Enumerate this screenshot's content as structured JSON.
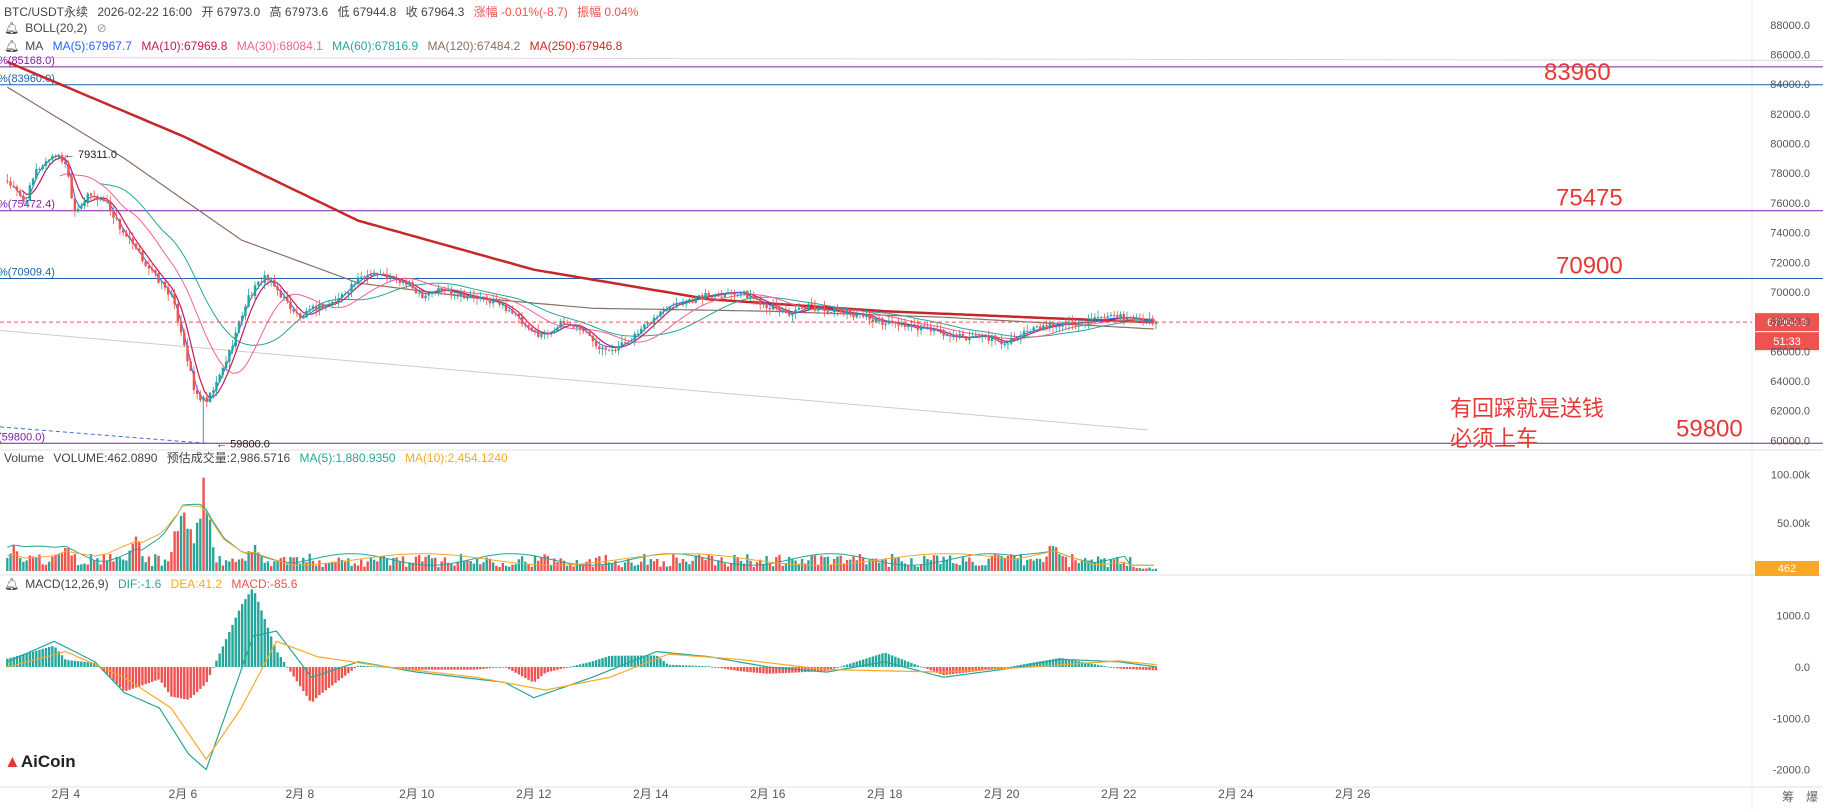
{
  "header": {
    "symbol": "BTC/USDT永续",
    "datetime": "2026-02-22 16:00",
    "open": "开 67973.0",
    "high": "高 67973.6",
    "low": "低 67944.8",
    "close": "收 67964.3",
    "change": "涨幅 -0.01%(-8.7)",
    "amplitude": "振幅 0.04%",
    "boll": "BOLL(20,2)",
    "ma_label": "MA",
    "ma": [
      {
        "text": "MA(5):67967.7",
        "color": "#2962ff"
      },
      {
        "text": "MA(10):67969.8",
        "color": "#c2185b"
      },
      {
        "text": "MA(30):68084.1",
        "color": "#f06292"
      },
      {
        "text": "MA(60):67816.9",
        "color": "#26a69a"
      },
      {
        "text": "MA(120):67484.2",
        "color": "#8d6e63"
      },
      {
        "text": "MA(250):67946.8",
        "color": "#c62828"
      }
    ],
    "volume_label": "Volume",
    "volume": "VOLUME:462.0890",
    "volume_est": "预估成交量:2,986.5716",
    "vol_ma5": "MA(5):1,880.9350",
    "vol_ma10": "MA(10):2,454.1240",
    "macd_label": "MACD(12,26,9)",
    "dif": "DIF:-1.6",
    "dea": "DEA:41.2",
    "macd": "MACD:-85.6"
  },
  "colors": {
    "up": "#26a69a",
    "down": "#ef5350",
    "level_purple": "#7b1fa2",
    "level_blue": "#1e5fa8",
    "annot": "#e53935",
    "ma5": "#2962ff",
    "ma10": "#c2185b",
    "ma30": "#f06292",
    "ma60": "#26a69a",
    "ma120": "#8d6e63",
    "ma250": "#c62828",
    "vol_ma5": "#26a69a",
    "vol_ma10": "#f9a825",
    "dif": "#26a69a",
    "dea": "#f9a825"
  },
  "logo": "AiCoin",
  "corner_controls": [
    "筹",
    "爆"
  ],
  "chart_data": {
    "type": "candlestick",
    "x_ticks": [
      "2月 4",
      "2月 6",
      "2月 8",
      "2月 10",
      "2月 12",
      "2月 14",
      "2月 16",
      "2月 18",
      "2月 20",
      "2月 22",
      "2月 24",
      "2月 26"
    ],
    "price_axis": {
      "ticks": [
        "88000.0",
        "86000.0",
        "84000.0",
        "82000.0",
        "80000.0",
        "78000.0",
        "76000.0",
        "74000.0",
        "72000.0",
        "70000.0",
        "68000.0",
        "66000.0",
        "64000.0",
        "62000.0",
        "60000.0"
      ],
      "range": [
        58000,
        89000
      ]
    },
    "volume_axis": {
      "ticks": [
        "100.00k",
        "50.00k"
      ],
      "range": [
        0,
        110000
      ]
    },
    "macd_axis": {
      "ticks": [
        "1000.0",
        "0.0",
        "-1000.0",
        "-2000.0"
      ],
      "range": [
        -2300,
        1500
      ]
    },
    "current_price": "67964.3",
    "countdown": "51:33",
    "current_volume": "462",
    "levels": [
      {
        "label": "%(85168.0)",
        "value": 85168,
        "color": "#7b1fa2"
      },
      {
        "label": "%(83960.0)",
        "value": 83960,
        "color": "#1e5fa8"
      },
      {
        "label": "%(75472.4)",
        "value": 75472.4,
        "color": "#7b1fa2"
      },
      {
        "label": "%(70909.4)",
        "value": 70909.4,
        "color": "#1e5fa8"
      },
      {
        "label": "(59800.0)",
        "value": 59800,
        "color": "#7b1fa2"
      }
    ],
    "annotations_right": [
      {
        "text": "83960",
        "value": 83960
      },
      {
        "text": "75475",
        "value": 75475
      },
      {
        "text": "70900",
        "value": 70900
      },
      {
        "text": "59800",
        "value": 59800
      }
    ],
    "note_lines": [
      "有回踩就是送钱",
      "必须上车"
    ],
    "marks": [
      {
        "text": "79311.0",
        "value": 79311,
        "date": 3.9
      },
      {
        "text": "59800.0",
        "value": 59800,
        "date": 6.5
      }
    ],
    "price_path": [
      [
        3.0,
        77500
      ],
      [
        3.3,
        76000
      ],
      [
        3.5,
        78200
      ],
      [
        3.8,
        79311
      ],
      [
        4.0,
        78700
      ],
      [
        4.15,
        75500
      ],
      [
        4.4,
        76500
      ],
      [
        4.7,
        76100
      ],
      [
        4.9,
        74500
      ],
      [
        5.2,
        72800
      ],
      [
        5.5,
        71200
      ],
      [
        5.8,
        69800
      ],
      [
        6.0,
        67000
      ],
      [
        6.2,
        63200
      ],
      [
        6.4,
        62500
      ],
      [
        6.6,
        64000
      ],
      [
        6.8,
        66000
      ],
      [
        7.1,
        69500
      ],
      [
        7.4,
        71100
      ],
      [
        7.7,
        69700
      ],
      [
        8.0,
        68200
      ],
      [
        8.3,
        69000
      ],
      [
        8.6,
        69300
      ],
      [
        8.9,
        70500
      ],
      [
        9.2,
        71300
      ],
      [
        9.5,
        71000
      ],
      [
        9.8,
        70600
      ],
      [
        10.1,
        69800
      ],
      [
        10.4,
        70200
      ],
      [
        10.7,
        69900
      ],
      [
        11.0,
        69600
      ],
      [
        11.3,
        69400
      ],
      [
        11.6,
        68800
      ],
      [
        11.9,
        67400
      ],
      [
        12.2,
        67100
      ],
      [
        12.5,
        67900
      ],
      [
        12.8,
        67600
      ],
      [
        13.1,
        66400
      ],
      [
        13.4,
        66200
      ],
      [
        13.7,
        66900
      ],
      [
        14.0,
        68000
      ],
      [
        14.3,
        69100
      ],
      [
        14.6,
        69400
      ],
      [
        14.9,
        69700
      ],
      [
        15.2,
        69900
      ],
      [
        15.5,
        70000
      ],
      [
        15.8,
        69500
      ],
      [
        16.1,
        68900
      ],
      [
        16.4,
        68500
      ],
      [
        16.7,
        69000
      ],
      [
        17.0,
        68800
      ],
      [
        17.3,
        68600
      ],
      [
        17.6,
        68500
      ],
      [
        17.9,
        68000
      ],
      [
        18.2,
        67900
      ],
      [
        18.5,
        67600
      ],
      [
        18.8,
        67500
      ],
      [
        19.1,
        67000
      ],
      [
        19.4,
        66900
      ],
      [
        19.7,
        67100
      ],
      [
        20.0,
        66500
      ],
      [
        20.3,
        67100
      ],
      [
        20.6,
        67500
      ],
      [
        20.9,
        67800
      ],
      [
        21.2,
        67900
      ],
      [
        21.5,
        68000
      ],
      [
        21.8,
        68200
      ],
      [
        22.1,
        68300
      ],
      [
        22.4,
        68100
      ],
      [
        22.67,
        67964.3
      ]
    ],
    "ma250_path": [
      [
        3.0,
        85500
      ],
      [
        6.0,
        80500
      ],
      [
        9.0,
        74800
      ],
      [
        12.0,
        71500
      ],
      [
        15.0,
        69500
      ],
      [
        18.0,
        68700
      ],
      [
        21.0,
        68200
      ],
      [
        22.67,
        67946.8
      ]
    ],
    "ma120_path": [
      [
        3.0,
        83800
      ],
      [
        5.0,
        79000
      ],
      [
        7.0,
        73500
      ],
      [
        9.0,
        70600
      ],
      [
        11.0,
        69600
      ],
      [
        13.0,
        68900
      ],
      [
        16.0,
        68700
      ],
      [
        19.0,
        68300
      ],
      [
        22.67,
        67484.2
      ]
    ],
    "volume_peaks": [
      [
        6.0,
        95000
      ],
      [
        6.35,
        100000
      ],
      [
        5.2,
        40000
      ],
      [
        7.2,
        32000
      ],
      [
        20.9,
        40000
      ],
      [
        3.1,
        30000
      ],
      [
        4.0,
        35000
      ]
    ],
    "macd_dif_path": [
      [
        3.0,
        100
      ],
      [
        3.8,
        500
      ],
      [
        4.5,
        100
      ],
      [
        5.0,
        -500
      ],
      [
        5.6,
        -800
      ],
      [
        6.1,
        -1700
      ],
      [
        6.4,
        -2000
      ],
      [
        6.8,
        -700
      ],
      [
        7.2,
        600
      ],
      [
        7.6,
        700
      ],
      [
        8.2,
        -200
      ],
      [
        9.0,
        100
      ],
      [
        10.0,
        -100
      ],
      [
        11.5,
        -300
      ],
      [
        12.0,
        -600
      ],
      [
        13.0,
        -200
      ],
      [
        14.1,
        300
      ],
      [
        15.0,
        200
      ],
      [
        16.0,
        0
      ],
      [
        17.0,
        -100
      ],
      [
        18.0,
        100
      ],
      [
        19.0,
        -200
      ],
      [
        20.0,
        -50
      ],
      [
        21.0,
        150
      ],
      [
        22.0,
        100
      ],
      [
        22.67,
        -1.6
      ]
    ],
    "macd_dea_path": [
      [
        3.0,
        0
      ],
      [
        4.0,
        300
      ],
      [
        5.0,
        -200
      ],
      [
        5.8,
        -800
      ],
      [
        6.4,
        -1800
      ],
      [
        7.0,
        -800
      ],
      [
        7.6,
        500
      ],
      [
        8.3,
        200
      ],
      [
        9.5,
        0
      ],
      [
        11.0,
        -200
      ],
      [
        12.2,
        -450
      ],
      [
        13.3,
        -200
      ],
      [
        14.3,
        250
      ],
      [
        15.5,
        150
      ],
      [
        17.0,
        -50
      ],
      [
        19.0,
        -100
      ],
      [
        20.5,
        0
      ],
      [
        22.0,
        120
      ],
      [
        22.67,
        41.2
      ]
    ]
  }
}
